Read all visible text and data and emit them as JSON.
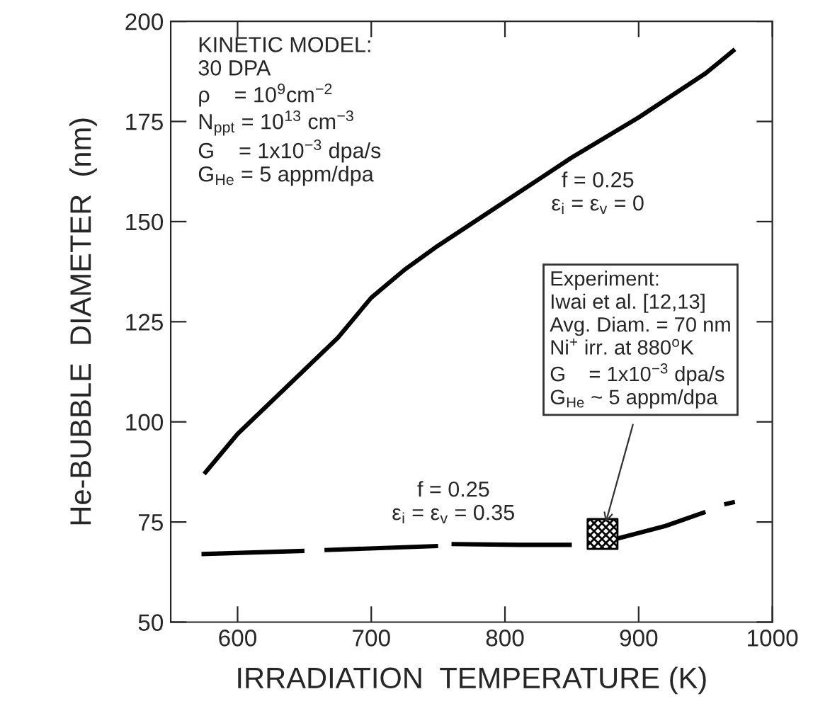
{
  "chart_data": {
    "type": "line",
    "xlabel": "IRRADIATION  TEMPERATURE (K)",
    "ylabel": "He-BUBBLE  DIAMETER  (nm)",
    "xlim": [
      550,
      1000
    ],
    "ylim": [
      50,
      200
    ],
    "xticks": [
      600,
      700,
      800,
      900,
      1000
    ],
    "yticks": [
      50,
      75,
      100,
      125,
      150,
      175,
      200
    ],
    "grid": false,
    "legend": false,
    "marker": "none",
    "line_style": "solid",
    "series": [
      {
        "color": "#000000",
        "x": [
          575,
          600,
          625,
          650,
          675,
          700,
          725,
          750,
          800,
          850,
          900,
          950,
          972
        ],
        "values": [
          87,
          97,
          105,
          113,
          121,
          131,
          138,
          144,
          155,
          166,
          176,
          187,
          193
        ]
      },
      {
        "color": "#000000",
        "x": [
          573,
          650,
          655,
          665,
          750,
          755,
          760,
          810,
          850,
          865,
          880,
          920,
          950,
          958,
          964,
          972
        ],
        "values": [
          67,
          67.8,
          null,
          68,
          69,
          null,
          69.5,
          69.3,
          69.3,
          null,
          70.5,
          74,
          77.5,
          null,
          79.4,
          80
        ]
      },
      {
        "type": "scatter",
        "color": "#000000",
        "marker": "square",
        "x": [
          873
        ],
        "values": [
          72
        ]
      }
    ],
    "annotations": [
      "KINETIC MODEL:\n30 DPA\nρ    = 10$^{9}$cm$^{−2}$\nN$_{ppt}$ = 10$^{13}$ cm$^{−3}$\nG    = 1x10$^{−3}$ dpa/s\nG$_{He}$ = 5 appm/dpa",
      "f = 0.25\nε$_{i}$ = ε$_{v}$ = 0",
      "f = 0.25\nε$_{i}$ = ε$_{v}$ = 0.35",
      "Experiment:\nIwai et al. [12,13]\nAvg. Diam. = 70 nm\nNi$^{+}$ irr. at 880$^{o}$K\nG    = 1x10$^{−3}$ dpa/s\nG$_{He}$ ~ 5 appm/dpa"
    ]
  }
}
